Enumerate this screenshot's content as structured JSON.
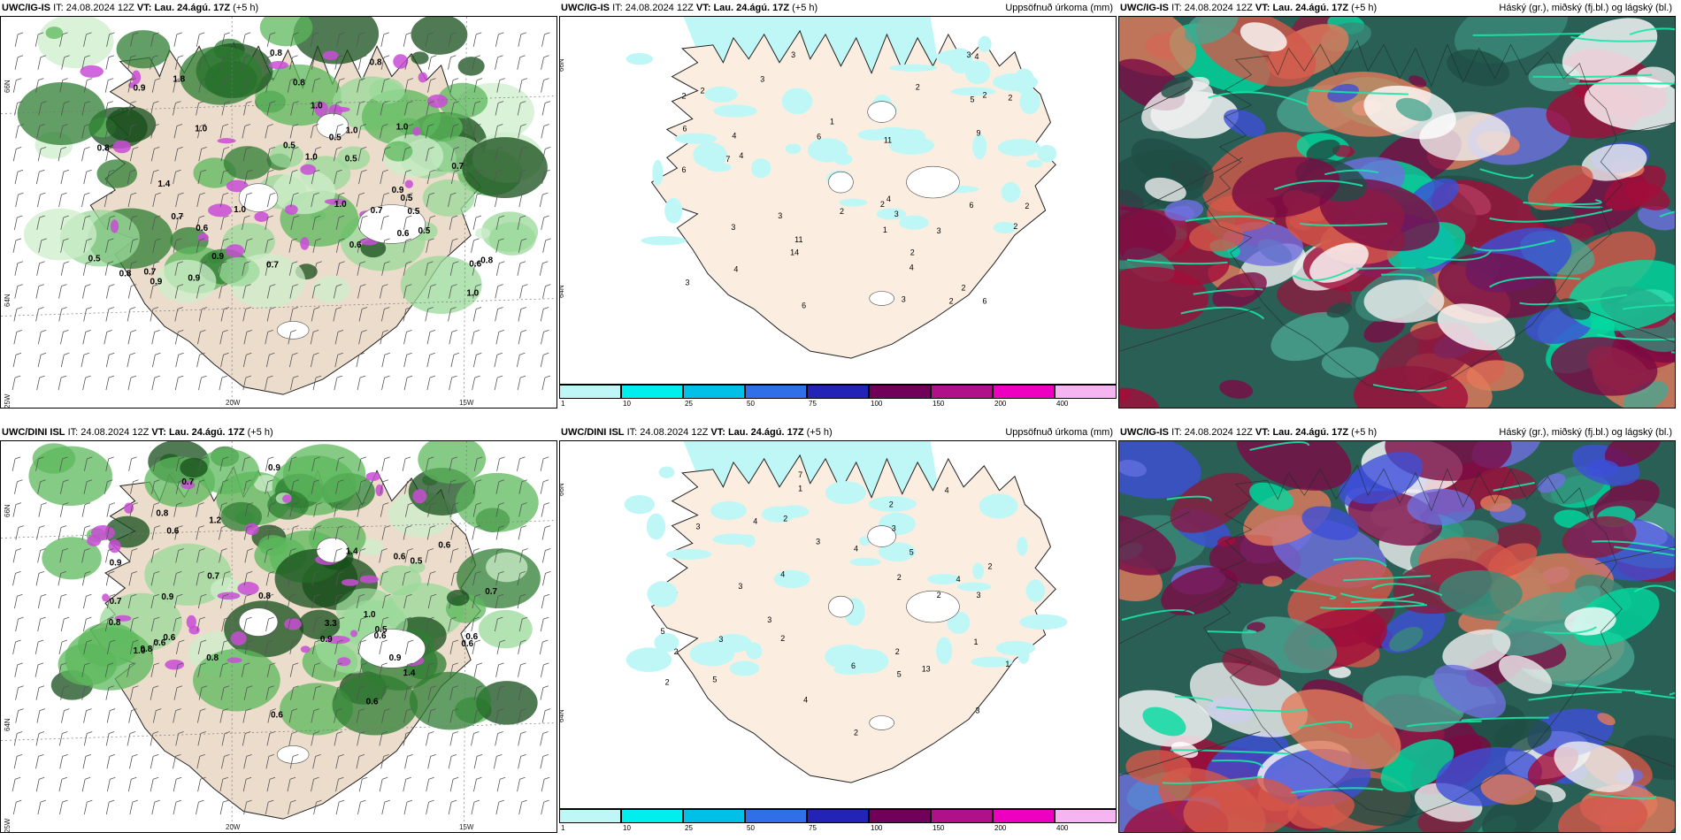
{
  "rows": [
    {
      "model": "UWC/IG-IS",
      "it_label": "IT:",
      "it_value": "24.08.2024 12Z",
      "vt_label": "VT:",
      "vt_value": "Lau. 24.ágú. 17Z",
      "lead": "(+5 h)"
    },
    {
      "model": "UWC/DINI ISL",
      "it_label": "IT:",
      "it_value": "24.08.2024 12Z",
      "vt_label": "VT:",
      "vt_value": "Lau. 24.ágú. 17Z",
      "lead": "(+5 h)"
    }
  ],
  "cloud_panel": {
    "model": "UWC/IG-IS",
    "title": "Háský (gr.), miðský (fj.bl.) og lágský (bl.)"
  },
  "precip_panel": {
    "title": "Uppsöfnuð úrkoma (mm)"
  },
  "colorbar": {
    "labels": [
      "1",
      "10",
      "25",
      "50",
      "75",
      "100",
      "150",
      "200",
      "400"
    ],
    "colors": [
      "#bff7f7",
      "#00eeee",
      "#00c0e8",
      "#2f6fe8",
      "#2323b8",
      "#70005a",
      "#b0108a",
      "#ee00c0",
      "#f5b5f0"
    ]
  },
  "axes": {
    "lon_labels": [
      "20W",
      "15W",
      "25W"
    ],
    "lat_labels": [
      "66N",
      "64N"
    ]
  },
  "wind_values": {
    "top": [
      "0.5",
      "0.5",
      "0.6",
      "1.0",
      "0.9",
      "0.7",
      "0.8",
      "1.0",
      "0.6",
      "0.8",
      "0.7",
      "1.0",
      "0.5",
      "0.8",
      "1.0",
      "0.9",
      "1.0",
      "0.5",
      "0.7",
      "0.8",
      "0.7",
      "0.6",
      "0.5",
      "1.0",
      "0.9",
      "0.8",
      "0.9",
      "0.5",
      "0.8",
      "1.0",
      "1.8",
      "1.4",
      "0.9",
      "1.0",
      "0.5",
      "0.6",
      "0.7"
    ],
    "bottom": [
      "0.6",
      "0.8",
      "0.6",
      "0.7",
      "0.9",
      "0.8",
      "0.6",
      "0.9",
      "0.5",
      "1.0",
      "0.6",
      "0.8",
      "0.9",
      "0.5",
      "0.7",
      "0.6",
      "0.8",
      "1.4",
      "0.6",
      "0.6",
      "0.7",
      "0.6",
      "1.2",
      "0.7",
      "1.0",
      "0.9",
      "0.6",
      "0.6",
      "3.3",
      "0.8",
      "0.9",
      "1.4"
    ]
  },
  "precip_values": {
    "top": [
      "2",
      "6",
      "6",
      "4",
      "11",
      "6",
      "4",
      "4",
      "5",
      "3",
      "3",
      "3",
      "3",
      "2",
      "3",
      "1",
      "11",
      "6",
      "2",
      "4",
      "14",
      "2",
      "6",
      "3",
      "4",
      "2",
      "3",
      "2",
      "2",
      "2",
      "1",
      "3",
      "2",
      "2",
      "7",
      "6",
      "9",
      "2",
      "4",
      "2",
      "3"
    ],
    "bottom": [
      "2",
      "3",
      "4",
      "2",
      "4",
      "3",
      "2",
      "2",
      "2",
      "4",
      "3",
      "2",
      "2",
      "1",
      "2",
      "5",
      "3",
      "6",
      "13",
      "5",
      "7",
      "4",
      "5",
      "4",
      "3",
      "3",
      "5",
      "1",
      "3",
      "3",
      "2",
      "4",
      "2",
      "1"
    ]
  }
}
